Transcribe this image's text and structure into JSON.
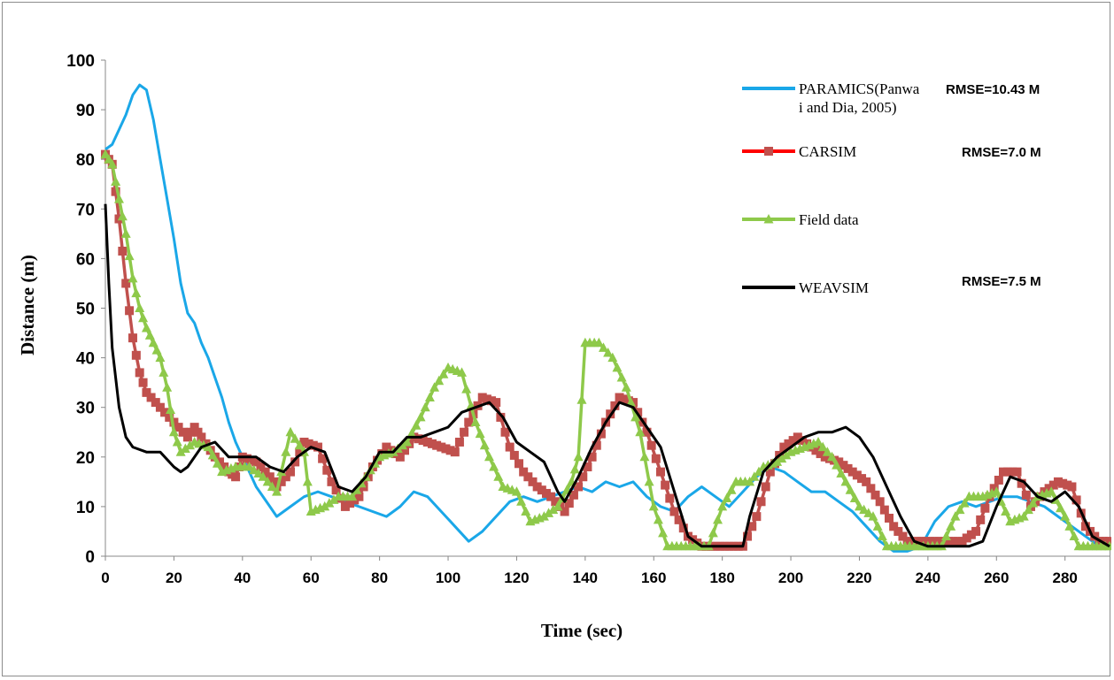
{
  "chart_data": {
    "type": "line",
    "title": "",
    "xlabel": "Time (sec)",
    "ylabel": "Distance (m)",
    "xlim": [
      0,
      293
    ],
    "ylim": [
      0,
      100
    ],
    "x_ticks": [
      "0",
      "20",
      "40",
      "60",
      "80",
      "100",
      "120",
      "140",
      "160",
      "180",
      "200",
      "220",
      "240",
      "260",
      "280"
    ],
    "y_ticks": [
      "0",
      "10",
      "20",
      "30",
      "40",
      "50",
      "60",
      "70",
      "80",
      "90",
      "100"
    ],
    "grid": false,
    "legend_position": "top-right",
    "series": [
      {
        "name": "PARAMICS(Panwa i and Dia, 2005)",
        "legend_lines": [
          "PARAMICS(Panwa",
          "i and Dia, 2005)"
        ],
        "rmse_label": "RMSE=10.43 M",
        "color": "#1aa7e8",
        "marker": "none",
        "points": [
          [
            0,
            82
          ],
          [
            2,
            83
          ],
          [
            4,
            86
          ],
          [
            6,
            89
          ],
          [
            8,
            93
          ],
          [
            10,
            95
          ],
          [
            12,
            94
          ],
          [
            14,
            88
          ],
          [
            16,
            80
          ],
          [
            18,
            72
          ],
          [
            20,
            64
          ],
          [
            22,
            55
          ],
          [
            24,
            49
          ],
          [
            26,
            47
          ],
          [
            28,
            43
          ],
          [
            30,
            40
          ],
          [
            32,
            36
          ],
          [
            34,
            32
          ],
          [
            36,
            27
          ],
          [
            38,
            23
          ],
          [
            40,
            20
          ],
          [
            44,
            14
          ],
          [
            48,
            10
          ],
          [
            50,
            8
          ],
          [
            54,
            10
          ],
          [
            58,
            12
          ],
          [
            62,
            13
          ],
          [
            66,
            12
          ],
          [
            70,
            11
          ],
          [
            74,
            10
          ],
          [
            78,
            9
          ],
          [
            82,
            8
          ],
          [
            86,
            10
          ],
          [
            90,
            13
          ],
          [
            94,
            12
          ],
          [
            98,
            9
          ],
          [
            102,
            6
          ],
          [
            106,
            3
          ],
          [
            110,
            5
          ],
          [
            114,
            8
          ],
          [
            118,
            11
          ],
          [
            122,
            12
          ],
          [
            126,
            11
          ],
          [
            130,
            12
          ],
          [
            134,
            13
          ],
          [
            138,
            14
          ],
          [
            142,
            13
          ],
          [
            146,
            15
          ],
          [
            150,
            14
          ],
          [
            154,
            15
          ],
          [
            158,
            12
          ],
          [
            162,
            10
          ],
          [
            166,
            9
          ],
          [
            170,
            12
          ],
          [
            174,
            14
          ],
          [
            178,
            12
          ],
          [
            182,
            10
          ],
          [
            186,
            13
          ],
          [
            190,
            16
          ],
          [
            194,
            18
          ],
          [
            198,
            17
          ],
          [
            202,
            15
          ],
          [
            206,
            13
          ],
          [
            210,
            13
          ],
          [
            214,
            11
          ],
          [
            218,
            9
          ],
          [
            222,
            6
          ],
          [
            226,
            3
          ],
          [
            230,
            1
          ],
          [
            234,
            1
          ],
          [
            238,
            2
          ],
          [
            242,
            7
          ],
          [
            246,
            10
          ],
          [
            250,
            11
          ],
          [
            254,
            10
          ],
          [
            258,
            11
          ],
          [
            262,
            12
          ],
          [
            266,
            12
          ],
          [
            270,
            11
          ],
          [
            274,
            10
          ],
          [
            278,
            8
          ],
          [
            282,
            6
          ],
          [
            286,
            4
          ],
          [
            290,
            2
          ],
          [
            293,
            2
          ]
        ]
      },
      {
        "name": "CARSIM",
        "rmse_label": "RMSE=7.0 M",
        "color": "#c0504d",
        "line_color": "#ff0000",
        "marker": "square",
        "points": [
          [
            0,
            81
          ],
          [
            2,
            79
          ],
          [
            4,
            68
          ],
          [
            6,
            55
          ],
          [
            8,
            44
          ],
          [
            10,
            37
          ],
          [
            12,
            33
          ],
          [
            16,
            30
          ],
          [
            20,
            27
          ],
          [
            24,
            24
          ],
          [
            26,
            26
          ],
          [
            28,
            24
          ],
          [
            32,
            20
          ],
          [
            36,
            17
          ],
          [
            38,
            16
          ],
          [
            40,
            20
          ],
          [
            44,
            19
          ],
          [
            48,
            16
          ],
          [
            50,
            14
          ],
          [
            54,
            17
          ],
          [
            58,
            23
          ],
          [
            62,
            22
          ],
          [
            66,
            15
          ],
          [
            70,
            10
          ],
          [
            74,
            12
          ],
          [
            78,
            18
          ],
          [
            82,
            22
          ],
          [
            86,
            20
          ],
          [
            90,
            24
          ],
          [
            94,
            23
          ],
          [
            98,
            22
          ],
          [
            102,
            21
          ],
          [
            106,
            27
          ],
          [
            110,
            32
          ],
          [
            114,
            31
          ],
          [
            118,
            22
          ],
          [
            122,
            17
          ],
          [
            126,
            14
          ],
          [
            130,
            12
          ],
          [
            134,
            9
          ],
          [
            138,
            14
          ],
          [
            142,
            20
          ],
          [
            146,
            27
          ],
          [
            150,
            32
          ],
          [
            154,
            31
          ],
          [
            158,
            25
          ],
          [
            162,
            17
          ],
          [
            166,
            9
          ],
          [
            170,
            4
          ],
          [
            174,
            2
          ],
          [
            178,
            2
          ],
          [
            182,
            2
          ],
          [
            186,
            2
          ],
          [
            190,
            8
          ],
          [
            194,
            17
          ],
          [
            198,
            22
          ],
          [
            202,
            24
          ],
          [
            206,
            22
          ],
          [
            210,
            20
          ],
          [
            214,
            19
          ],
          [
            218,
            17
          ],
          [
            222,
            15
          ],
          [
            226,
            11
          ],
          [
            230,
            6
          ],
          [
            234,
            3
          ],
          [
            238,
            3
          ],
          [
            242,
            3
          ],
          [
            246,
            3
          ],
          [
            250,
            3
          ],
          [
            254,
            5
          ],
          [
            258,
            12
          ],
          [
            262,
            17
          ],
          [
            266,
            17
          ],
          [
            270,
            10
          ],
          [
            274,
            13
          ],
          [
            278,
            15
          ],
          [
            282,
            14
          ],
          [
            286,
            6
          ],
          [
            290,
            3
          ],
          [
            293,
            3
          ]
        ]
      },
      {
        "name": "Field data",
        "rmse_label": "",
        "color": "#8ec94a",
        "marker": "triangle",
        "points": [
          [
            0,
            81
          ],
          [
            2,
            79
          ],
          [
            4,
            72
          ],
          [
            6,
            65
          ],
          [
            8,
            56
          ],
          [
            10,
            50
          ],
          [
            12,
            46
          ],
          [
            14,
            43
          ],
          [
            16,
            40
          ],
          [
            18,
            34
          ],
          [
            20,
            25
          ],
          [
            22,
            21
          ],
          [
            26,
            23
          ],
          [
            30,
            22
          ],
          [
            34,
            17
          ],
          [
            38,
            18
          ],
          [
            42,
            18
          ],
          [
            46,
            16
          ],
          [
            50,
            13
          ],
          [
            54,
            25
          ],
          [
            58,
            21
          ],
          [
            60,
            9
          ],
          [
            64,
            10
          ],
          [
            68,
            12
          ],
          [
            72,
            12
          ],
          [
            76,
            16
          ],
          [
            80,
            20
          ],
          [
            84,
            21
          ],
          [
            88,
            23
          ],
          [
            92,
            28
          ],
          [
            96,
            34
          ],
          [
            100,
            38
          ],
          [
            104,
            37
          ],
          [
            108,
            27
          ],
          [
            112,
            20
          ],
          [
            116,
            14
          ],
          [
            120,
            13
          ],
          [
            124,
            7
          ],
          [
            128,
            8
          ],
          [
            132,
            10
          ],
          [
            136,
            15
          ],
          [
            138,
            20
          ],
          [
            140,
            43
          ],
          [
            144,
            43
          ],
          [
            148,
            40
          ],
          [
            152,
            34
          ],
          [
            156,
            25
          ],
          [
            160,
            10
          ],
          [
            164,
            2
          ],
          [
            168,
            2
          ],
          [
            172,
            2
          ],
          [
            176,
            2
          ],
          [
            180,
            10
          ],
          [
            184,
            15
          ],
          [
            188,
            15
          ],
          [
            192,
            18
          ],
          [
            196,
            19
          ],
          [
            200,
            21
          ],
          [
            204,
            22
          ],
          [
            208,
            23
          ],
          [
            212,
            20
          ],
          [
            216,
            15
          ],
          [
            220,
            10
          ],
          [
            224,
            8
          ],
          [
            228,
            2
          ],
          [
            232,
            2
          ],
          [
            236,
            2
          ],
          [
            240,
            2
          ],
          [
            244,
            2
          ],
          [
            248,
            8
          ],
          [
            252,
            12
          ],
          [
            256,
            12
          ],
          [
            260,
            13
          ],
          [
            264,
            7
          ],
          [
            268,
            8
          ],
          [
            272,
            12
          ],
          [
            276,
            13
          ],
          [
            280,
            8
          ],
          [
            284,
            2
          ],
          [
            288,
            2
          ],
          [
            293,
            2
          ]
        ]
      },
      {
        "name": "WEAVSIM",
        "rmse_label": "RMSE=7.5 M",
        "color": "#000000",
        "marker": "none",
        "points": [
          [
            0,
            71
          ],
          [
            1,
            55
          ],
          [
            2,
            42
          ],
          [
            4,
            30
          ],
          [
            6,
            24
          ],
          [
            8,
            22
          ],
          [
            12,
            21
          ],
          [
            16,
            21
          ],
          [
            20,
            18
          ],
          [
            22,
            17
          ],
          [
            24,
            18
          ],
          [
            28,
            22
          ],
          [
            32,
            23
          ],
          [
            36,
            20
          ],
          [
            40,
            20
          ],
          [
            44,
            20
          ],
          [
            48,
            18
          ],
          [
            52,
            17
          ],
          [
            56,
            20
          ],
          [
            60,
            22
          ],
          [
            64,
            21
          ],
          [
            68,
            14
          ],
          [
            72,
            13
          ],
          [
            76,
            16
          ],
          [
            80,
            21
          ],
          [
            84,
            21
          ],
          [
            88,
            24
          ],
          [
            92,
            24
          ],
          [
            96,
            25
          ],
          [
            100,
            26
          ],
          [
            104,
            29
          ],
          [
            108,
            30
          ],
          [
            112,
            31
          ],
          [
            116,
            28
          ],
          [
            120,
            23
          ],
          [
            124,
            21
          ],
          [
            128,
            19
          ],
          [
            132,
            13
          ],
          [
            134,
            11
          ],
          [
            138,
            16
          ],
          [
            142,
            22
          ],
          [
            146,
            27
          ],
          [
            150,
            31
          ],
          [
            154,
            30
          ],
          [
            158,
            26
          ],
          [
            162,
            22
          ],
          [
            166,
            13
          ],
          [
            170,
            4
          ],
          [
            174,
            2
          ],
          [
            178,
            2
          ],
          [
            182,
            2
          ],
          [
            186,
            2
          ],
          [
            188,
            8
          ],
          [
            192,
            17
          ],
          [
            196,
            20
          ],
          [
            200,
            22
          ],
          [
            204,
            24
          ],
          [
            208,
            25
          ],
          [
            212,
            25
          ],
          [
            216,
            26
          ],
          [
            220,
            24
          ],
          [
            224,
            20
          ],
          [
            228,
            14
          ],
          [
            232,
            8
          ],
          [
            236,
            3
          ],
          [
            240,
            2
          ],
          [
            244,
            2
          ],
          [
            248,
            2
          ],
          [
            252,
            2
          ],
          [
            256,
            3
          ],
          [
            260,
            10
          ],
          [
            264,
            16
          ],
          [
            268,
            15
          ],
          [
            272,
            12
          ],
          [
            276,
            11
          ],
          [
            280,
            13
          ],
          [
            284,
            10
          ],
          [
            288,
            4
          ],
          [
            293,
            2
          ]
        ]
      }
    ]
  }
}
